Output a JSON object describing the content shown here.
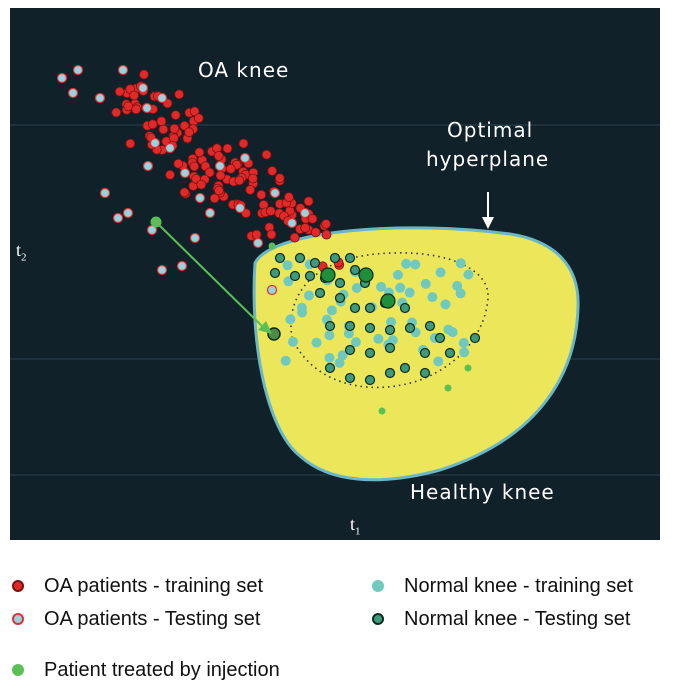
{
  "labels": {
    "oa_knee": "OA knee",
    "optimal_hyperplane": [
      "Optimal",
      "hyperplane"
    ],
    "healthy_knee": "Healthy knee",
    "axis_x_main": "t",
    "axis_x_sub": "1",
    "axis_y_main": "t",
    "axis_y_sub": "2"
  },
  "legend": [
    {
      "label": "OA patients - training set",
      "fill": "#e02a2a",
      "stroke": "#7a1010"
    },
    {
      "label": "OA patients - Testing set",
      "fill": "#9ad3dd",
      "stroke": "#e03030"
    },
    {
      "label": "Patient treated by injection",
      "fill": "#5cbf55",
      "stroke": "#5cbf55"
    },
    {
      "label": "Normal knee - training set",
      "fill": "#6fc9bf",
      "stroke": "#6fc9bf"
    },
    {
      "label": "Normal knee - Testing set",
      "fill": "#3e9a7a",
      "stroke": "#0d2a1e"
    }
  ],
  "colors": {
    "background": "#10212a",
    "healthy_region": "#ece75a",
    "boundary": "#6ab7c7",
    "oa_training": "#e02a2a",
    "oa_testing": "#9ad3dd",
    "normal_training": "#6fc9bf",
    "normal_testing": "#3e9a7a",
    "treated": "#5cbf55",
    "treated_dark": "#1f8f3c"
  }
}
